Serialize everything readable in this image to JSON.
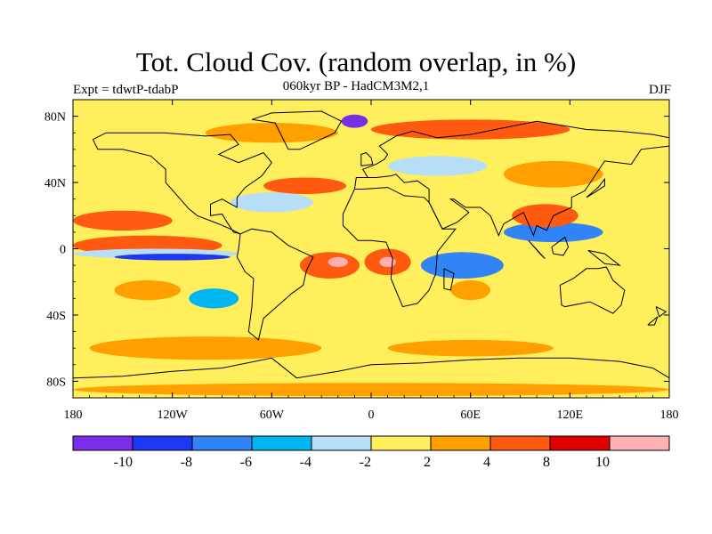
{
  "header": {
    "title": "Tot. Cloud Cov. (random overlap, in %)",
    "subtitle": "060kyr BP - HadCM3M2,1",
    "experiment": "Expt = tdwtP-tdabP",
    "season": "DJF"
  },
  "map": {
    "projection": "equirectangular",
    "lon_range": [
      -180,
      180
    ],
    "lat_range": [
      -90,
      90
    ],
    "lat_ticks": [
      {
        "value": 80,
        "label": "80N"
      },
      {
        "value": 40,
        "label": "40N"
      },
      {
        "value": 0,
        "label": "0"
      },
      {
        "value": -40,
        "label": "40S"
      },
      {
        "value": -80,
        "label": "80S"
      }
    ],
    "lon_ticks": [
      {
        "value": -180,
        "label": "180"
      },
      {
        "value": -120,
        "label": "120W"
      },
      {
        "value": -60,
        "label": "60W"
      },
      {
        "value": 0,
        "label": "0"
      },
      {
        "value": 60,
        "label": "60E"
      },
      {
        "value": 120,
        "label": "120E"
      },
      {
        "value": 180,
        "label": "180"
      }
    ],
    "background_class_color": "#ffef5c",
    "anomaly_regions": [
      {
        "lon": -135,
        "lat": 2,
        "rx": 28,
        "ry": 3,
        "color": "#ffb0b0"
      },
      {
        "lon": -135,
        "lat": 2,
        "rx": 45,
        "ry": 6,
        "color": "#ff5a10"
      },
      {
        "lon": -130,
        "lat": -3,
        "rx": 50,
        "ry": 3,
        "color": "#b7def7"
      },
      {
        "lon": -120,
        "lat": -5,
        "rx": 35,
        "ry": 2,
        "color": "#1e37f2"
      },
      {
        "lon": -150,
        "lat": 17,
        "rx": 30,
        "ry": 6,
        "color": "#ff5a10"
      },
      {
        "lon": -135,
        "lat": -25,
        "rx": 20,
        "ry": 6,
        "color": "#ff9f00"
      },
      {
        "lon": -95,
        "lat": -30,
        "rx": 15,
        "ry": 6,
        "color": "#00b5f2"
      },
      {
        "lon": -25,
        "lat": -10,
        "rx": 18,
        "ry": 8,
        "color": "#ff5a10"
      },
      {
        "lon": -20,
        "lat": -8,
        "rx": 6,
        "ry": 3,
        "color": "#ffb0b0"
      },
      {
        "lon": 10,
        "lat": -8,
        "rx": 14,
        "ry": 8,
        "color": "#ff5a10"
      },
      {
        "lon": 10,
        "lat": -8,
        "rx": 5,
        "ry": 3,
        "color": "#ffb0b0"
      },
      {
        "lon": 55,
        "lat": -10,
        "rx": 25,
        "ry": 8,
        "color": "#3283f5"
      },
      {
        "lon": 60,
        "lat": -25,
        "rx": 12,
        "ry": 6,
        "color": "#ff9f00"
      },
      {
        "lon": 110,
        "lat": 10,
        "rx": 30,
        "ry": 6,
        "color": "#3283f5"
      },
      {
        "lon": 105,
        "lat": 20,
        "rx": 20,
        "ry": 7,
        "color": "#ff5a10"
      },
      {
        "lon": -40,
        "lat": 38,
        "rx": 25,
        "ry": 5,
        "color": "#ff5a10"
      },
      {
        "lon": -60,
        "lat": 28,
        "rx": 25,
        "ry": 6,
        "color": "#b7def7"
      },
      {
        "lon": -10,
        "lat": 77,
        "rx": 8,
        "ry": 4,
        "color": "#7a2de6"
      },
      {
        "lon": -60,
        "lat": 70,
        "rx": 40,
        "ry": 6,
        "color": "#ff9f00"
      },
      {
        "lon": 60,
        "lat": 72,
        "rx": 60,
        "ry": 6,
        "color": "#ff5a10"
      },
      {
        "lon": 40,
        "lat": 50,
        "rx": 30,
        "ry": 6,
        "color": "#b7def7"
      },
      {
        "lon": 110,
        "lat": 45,
        "rx": 30,
        "ry": 8,
        "color": "#ff9f00"
      },
      {
        "lon": -100,
        "lat": -60,
        "rx": 70,
        "ry": 7,
        "color": "#ff9f00"
      },
      {
        "lon": 60,
        "lat": -60,
        "rx": 50,
        "ry": 5,
        "color": "#ff9f00"
      },
      {
        "lon": 0,
        "lat": -85,
        "rx": 180,
        "ry": 4,
        "color": "#ff9f00"
      }
    ]
  },
  "colorbar": {
    "colors": [
      "#7a2de6",
      "#1e37f2",
      "#3283f5",
      "#00b5f2",
      "#b7def7",
      "#ffef5c",
      "#ff9f00",
      "#ff5a10",
      "#e00000",
      "#ffb0b0"
    ],
    "labels": [
      "-10",
      "-8",
      "-6",
      "-4",
      "-2",
      "2",
      "4",
      "8",
      "10"
    ]
  }
}
